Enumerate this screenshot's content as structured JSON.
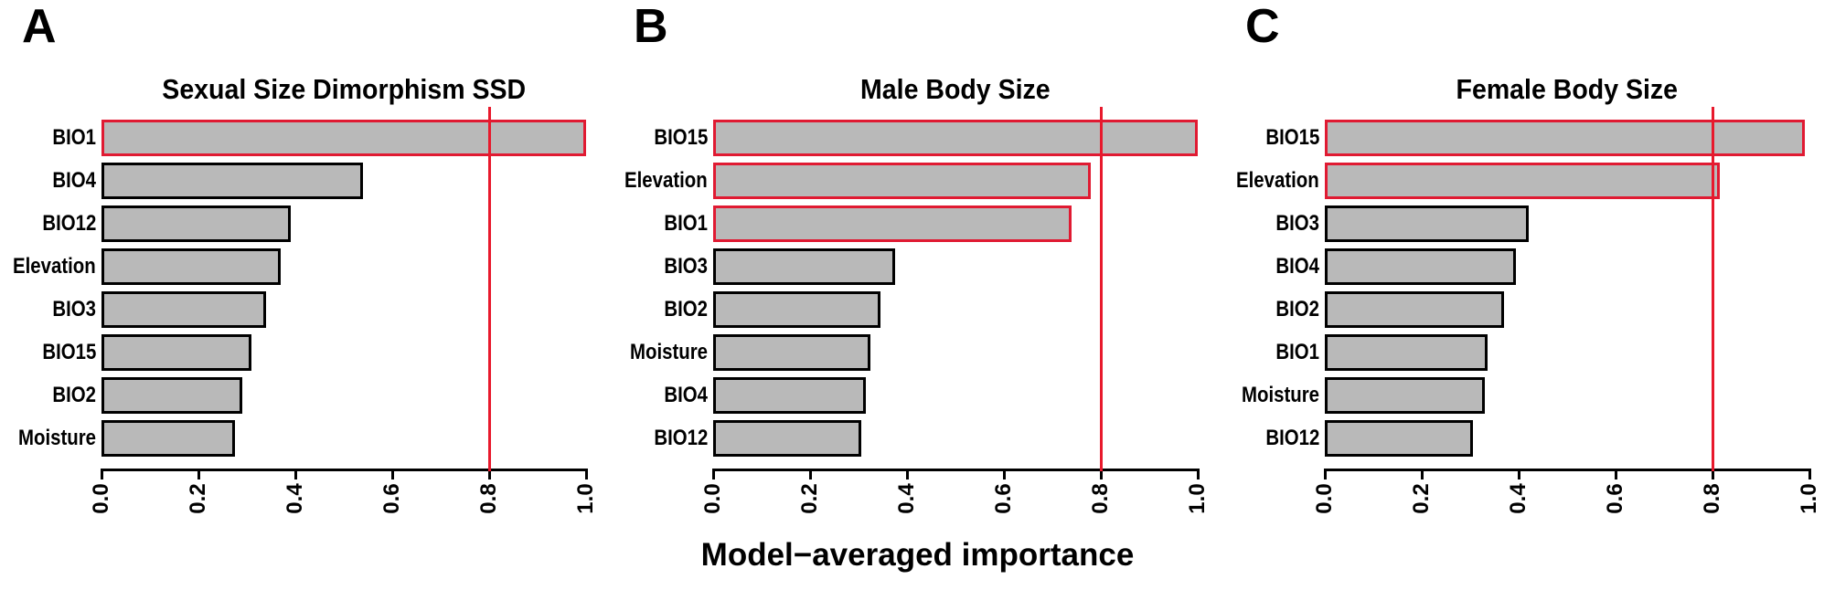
{
  "figure": {
    "xlabel": "Model−averaged importance"
  },
  "colors": {
    "bar_fill": "#b9b9b9",
    "bar_border": "#000000",
    "highlight_border": "#e01a32",
    "threshold_line": "#e8192c",
    "background": "#ffffff"
  },
  "chart_data": [
    {
      "type": "bar",
      "orientation": "horizontal",
      "panel_label": "A",
      "title": "Sexual Size Dimorphism SSD",
      "categories": [
        "BIO1",
        "BIO4",
        "BIO12",
        "Elevation",
        "BIO3",
        "BIO15",
        "BIO2",
        "Moisture"
      ],
      "values": [
        1.0,
        0.54,
        0.39,
        0.37,
        0.34,
        0.31,
        0.29,
        0.275
      ],
      "highlighted": [
        true,
        false,
        false,
        false,
        false,
        false,
        false,
        false
      ],
      "threshold_line": 0.8,
      "xlim": [
        0.0,
        1.0
      ],
      "xticks": [
        "0.0",
        "0.2",
        "0.4",
        "0.6",
        "0.8",
        "1.0"
      ],
      "grid": false,
      "legend": false
    },
    {
      "type": "bar",
      "orientation": "horizontal",
      "panel_label": "B",
      "title": "Male Body Size",
      "categories": [
        "BIO15",
        "Elevation",
        "BIO1",
        "BIO3",
        "BIO2",
        "Moisture",
        "BIO4",
        "BIO12"
      ],
      "values": [
        1.0,
        0.78,
        0.74,
        0.375,
        0.345,
        0.325,
        0.315,
        0.305
      ],
      "highlighted": [
        true,
        true,
        true,
        false,
        false,
        false,
        false,
        false
      ],
      "threshold_line": 0.8,
      "xlim": [
        0.0,
        1.0
      ],
      "xticks": [
        "0.0",
        "0.2",
        "0.4",
        "0.6",
        "0.8",
        "1.0"
      ],
      "grid": false,
      "legend": false
    },
    {
      "type": "bar",
      "orientation": "horizontal",
      "panel_label": "C",
      "title": "Female Body Size",
      "categories": [
        "BIO15",
        "Elevation",
        "BIO3",
        "BIO4",
        "BIO2",
        "BIO1",
        "Moisture",
        "BIO12"
      ],
      "values": [
        0.99,
        0.815,
        0.42,
        0.395,
        0.37,
        0.335,
        0.33,
        0.305
      ],
      "highlighted": [
        true,
        true,
        false,
        false,
        false,
        false,
        false,
        false
      ],
      "threshold_line": 0.8,
      "xlim": [
        0.0,
        1.0
      ],
      "xticks": [
        "0.0",
        "0.2",
        "0.4",
        "0.6",
        "0.8",
        "1.0"
      ],
      "grid": false,
      "legend": false
    }
  ]
}
